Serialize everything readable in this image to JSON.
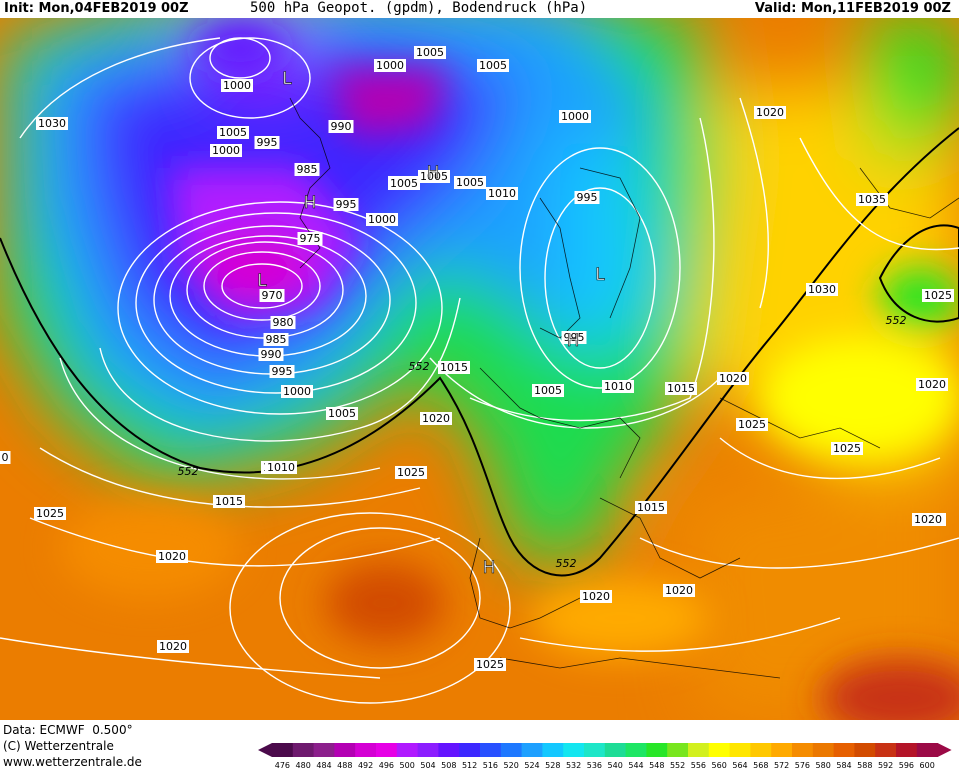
{
  "header": {
    "init": "Init: Mon,04FEB2019 00Z",
    "title": "500 hPa Geopot. (gpdm), Bodendruck (hPa)",
    "valid": "Valid: Mon,11FEB2019 00Z"
  },
  "footer": {
    "data": "Data: ECMWF  0.500°",
    "copyright": "(C) Wetterzentrale",
    "url": "www.wetterzentrale.de"
  },
  "legend": {
    "values": [
      "476",
      "480",
      "484",
      "488",
      "492",
      "496",
      "500",
      "504",
      "508",
      "512",
      "516",
      "520",
      "524",
      "528",
      "532",
      "536",
      "540",
      "544",
      "548",
      "552",
      "556",
      "560",
      "564",
      "568",
      "572",
      "576",
      "580",
      "584",
      "588",
      "592",
      "596",
      "600"
    ],
    "colors": [
      "#4b0a4b",
      "#6e1a6e",
      "#8c1f8c",
      "#b300b3",
      "#d400d4",
      "#e600e6",
      "#b01aff",
      "#8c1eff",
      "#6414ff",
      "#3c28ff",
      "#2850ff",
      "#1e78ff",
      "#1ea0ff",
      "#14c8ff",
      "#14e6f0",
      "#1ee6c8",
      "#1edc96",
      "#1ee664",
      "#28e628",
      "#78e61e",
      "#d2f01e",
      "#ffff00",
      "#ffe600",
      "#ffc800",
      "#ffaa00",
      "#f58c00",
      "#eb7800",
      "#e65f00",
      "#d24b00",
      "#c83214",
      "#b41428",
      "#9b0a46"
    ]
  },
  "map": {
    "isobar_labels": [
      "1000",
      "1005",
      "1005",
      "1000",
      "1005",
      "1030",
      "1000",
      "995",
      "990",
      "1005",
      "1000",
      "985",
      "995",
      "1000",
      "975",
      "970",
      "980",
      "985",
      "990",
      "995",
      "1000",
      "1005",
      "1010",
      "1015",
      "1005",
      "1005",
      "1010",
      "1005",
      "1000",
      "1020",
      "995",
      "995",
      "1005",
      "1010",
      "1015",
      "1035",
      "1030",
      "1025",
      "1020",
      "1020",
      "1025",
      "1025",
      "1020",
      "1020",
      "1015",
      "1020",
      "1025",
      "1010",
      "1015",
      "1025",
      "1020",
      "1020",
      "1020",
      "1025",
      "1020",
      "0"
    ],
    "contour_552_labels": [
      "552",
      "552",
      "552",
      "552"
    ],
    "pressure_centers": [
      {
        "type": "L",
        "label": "L"
      },
      {
        "type": "L",
        "label": "L"
      },
      {
        "type": "L",
        "label": "L"
      },
      {
        "type": "H",
        "label": "H"
      },
      {
        "type": "H",
        "label": "H"
      },
      {
        "type": "H",
        "label": "H"
      },
      {
        "type": "H",
        "label": "H"
      }
    ]
  }
}
